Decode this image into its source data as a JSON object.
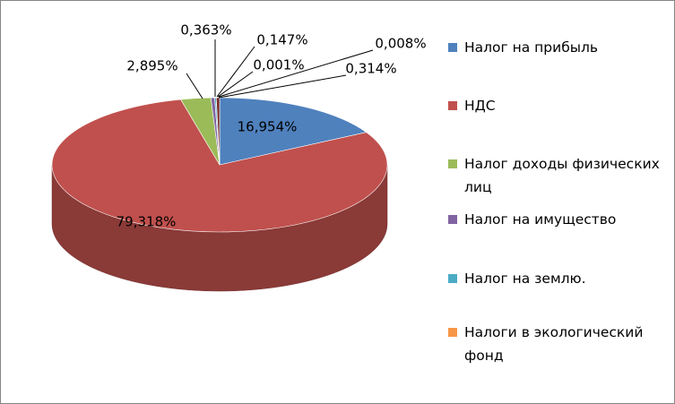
{
  "chart_data": {
    "type": "pie3d",
    "categories": [
      "Налог на прибыль",
      "НДС",
      "Налог доходы физических лиц",
      "Налог на имущество",
      "Налог на землю.",
      "Налоги в экологический фонд",
      null,
      null
    ],
    "values": [
      16.954,
      79.318,
      2.895,
      0.363,
      0.147,
      0.001,
      0.008,
      0.314
    ],
    "value_labels": [
      "16,954%",
      "79,318%",
      "2,895%",
      "0,363%",
      "0,147%",
      "0,001%",
      "0,008%",
      "0,314%"
    ],
    "colors": [
      "#4f81bd",
      "#c0504d",
      "#9bbb59",
      "#8064a2",
      "#4bacc6",
      "#f79646",
      "#2c4d75",
      "#772c2a"
    ],
    "legend": "right"
  }
}
